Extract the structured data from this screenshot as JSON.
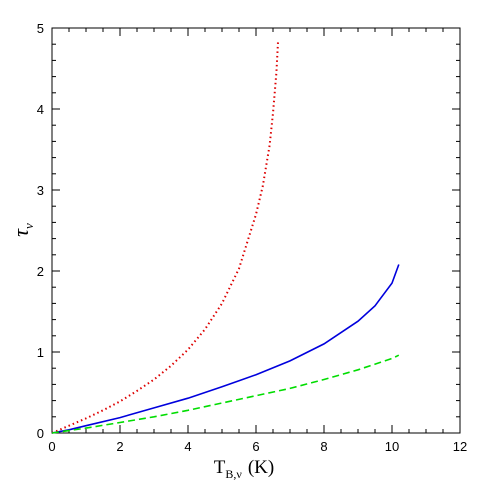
{
  "chart_data": {
    "type": "line",
    "xlabel": "T",
    "xlabel_sub": "B,ν",
    "xlabel_unit": "(K)",
    "ylabel": "τ",
    "ylabel_sub": "ν",
    "xlim": [
      0,
      12
    ],
    "ylim": [
      0,
      5
    ],
    "x_ticks": [
      "0",
      "2",
      "4",
      "6",
      "8",
      "10",
      "12"
    ],
    "y_ticks": [
      "0",
      "1",
      "2",
      "3",
      "4",
      "5"
    ],
    "grid": false,
    "series": [
      {
        "color": "#dd0000",
        "style": "dotted",
        "x": [
          0,
          0.5,
          1,
          1.5,
          2,
          2.5,
          3,
          3.5,
          4,
          4.5,
          5,
          5.5,
          6,
          6.2,
          6.4,
          6.5,
          6.6,
          6.65
        ],
        "y": [
          0,
          0.09,
          0.18,
          0.28,
          0.39,
          0.52,
          0.66,
          0.83,
          1.03,
          1.28,
          1.6,
          2.03,
          2.7,
          3.05,
          3.55,
          3.95,
          4.45,
          4.85
        ]
      },
      {
        "color": "#0000dd",
        "style": "solid",
        "x": [
          0,
          0.5,
          1,
          2,
          3,
          4,
          5,
          6,
          7,
          8,
          9,
          9.5,
          10,
          10.2
        ],
        "y": [
          0,
          0.04,
          0.09,
          0.19,
          0.31,
          0.43,
          0.57,
          0.72,
          0.89,
          1.1,
          1.38,
          1.57,
          1.85,
          2.08
        ]
      },
      {
        "color": "#00dd00",
        "style": "dashed",
        "x": [
          0,
          1,
          2,
          3,
          4,
          5,
          6,
          7,
          8,
          9,
          10,
          10.2
        ],
        "y": [
          0,
          0.06,
          0.13,
          0.2,
          0.28,
          0.37,
          0.46,
          0.55,
          0.66,
          0.78,
          0.92,
          0.96
        ]
      }
    ]
  }
}
